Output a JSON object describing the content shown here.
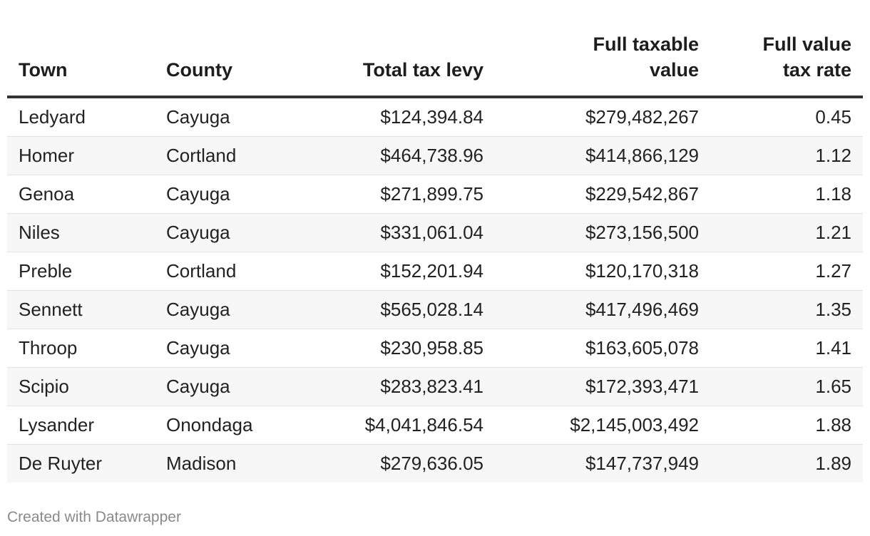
{
  "chart_data": {
    "type": "table",
    "columns": [
      {
        "key": "town",
        "label_lines": [
          "Town"
        ],
        "align": "left"
      },
      {
        "key": "county",
        "label_lines": [
          "County"
        ],
        "align": "left"
      },
      {
        "key": "levy",
        "label_lines": [
          "Total tax levy"
        ],
        "align": "right"
      },
      {
        "key": "value",
        "label_lines": [
          "Full taxable",
          "value"
        ],
        "align": "right"
      },
      {
        "key": "rate",
        "label_lines": [
          "Full value",
          "tax rate"
        ],
        "align": "right"
      }
    ],
    "rows": [
      {
        "town": "Ledyard",
        "county": "Cayuga",
        "levy": "$124,394.84",
        "value": "$279,482,267",
        "rate": "0.45"
      },
      {
        "town": "Homer",
        "county": "Cortland",
        "levy": "$464,738.96",
        "value": "$414,866,129",
        "rate": "1.12"
      },
      {
        "town": "Genoa",
        "county": "Cayuga",
        "levy": "$271,899.75",
        "value": "$229,542,867",
        "rate": "1.18"
      },
      {
        "town": "Niles",
        "county": "Cayuga",
        "levy": "$331,061.04",
        "value": "$273,156,500",
        "rate": "1.21"
      },
      {
        "town": "Preble",
        "county": "Cortland",
        "levy": "$152,201.94",
        "value": "$120,170,318",
        "rate": "1.27"
      },
      {
        "town": "Sennett",
        "county": "Cayuga",
        "levy": "$565,028.14",
        "value": "$417,496,469",
        "rate": "1.35"
      },
      {
        "town": "Throop",
        "county": "Cayuga",
        "levy": "$230,958.85",
        "value": "$163,605,078",
        "rate": "1.41"
      },
      {
        "town": "Scipio",
        "county": "Cayuga",
        "levy": "$283,823.41",
        "value": "$172,393,471",
        "rate": "1.65"
      },
      {
        "town": "Lysander",
        "county": "Onondaga",
        "levy": "$4,041,846.54",
        "value": "$2,145,003,492",
        "rate": "1.88"
      },
      {
        "town": "De Ruyter",
        "county": "Madison",
        "levy": "$279,636.05",
        "value": "$147,737,949",
        "rate": "1.89"
      }
    ]
  },
  "footer": {
    "credit": "Created with Datawrapper"
  },
  "colors": {
    "header_rule": "#333333",
    "stripe": "#f7f7f7",
    "row_rule": "#e2e2e2",
    "footer_text": "#8a8a8a"
  }
}
